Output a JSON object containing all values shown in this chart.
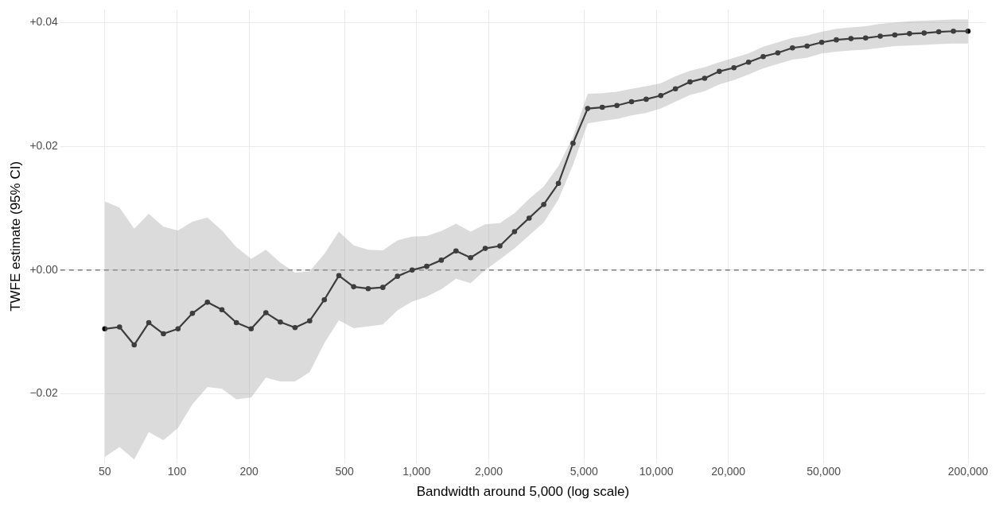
{
  "chart_data": {
    "type": "line",
    "xlabel": "Bandwidth around 5,000 (log scale)",
    "ylabel": "TWFE estimate (95% CI)",
    "log": "x",
    "grid": true,
    "marker": "circle",
    "line_style": "solid",
    "x": [
      50,
      57.6,
      66.3,
      76.3,
      87.8,
      101,
      116,
      134,
      154,
      177,
      204,
      235,
      270,
      311,
      358,
      412,
      474,
      546,
      628,
      723,
      832,
      958,
      1102,
      1268,
      1460,
      1680,
      1934,
      2226,
      2562,
      2948,
      3393,
      3906,
      4495,
      5174,
      5954,
      6853,
      7887,
      9078,
      10445,
      12023,
      13836,
      15927,
      18330,
      21098,
      24281,
      27946,
      32162,
      37020,
      42604,
      49038,
      56435,
      64959,
      74757,
      86050,
      99010,
      114000,
      131200,
      151000,
      173800,
      200000
    ],
    "xlim": [
      32.6,
      236600
    ],
    "xticks": [
      50,
      100,
      200,
      500,
      {
        "value": 1000,
        "label": "1,000"
      },
      {
        "value": 2000,
        "label": "2,000"
      },
      {
        "value": 5000,
        "label": "5,000"
      },
      {
        "value": 10000,
        "label": "10,000"
      },
      {
        "value": 20000,
        "label": "20,000"
      },
      {
        "value": 50000,
        "label": "50,000"
      },
      {
        "value": 200000,
        "label": "200,000"
      }
    ],
    "ylim": [
      -0.0312,
      0.0421
    ],
    "yticks": [
      {
        "value": -0.02,
        "label": "−0.02"
      },
      {
        "value": 0,
        "label": "+0.00"
      },
      {
        "value": 0.02,
        "label": "+0.02"
      },
      {
        "value": 0.04,
        "label": "+0.04"
      }
    ],
    "ref_lines": [
      {
        "axis": "y",
        "value": 0,
        "color": "#666666",
        "line_style": "dashed"
      }
    ],
    "series": [
      {
        "color": "#000000",
        "values": [
          -0.0095,
          -0.0092,
          -0.0121,
          -0.0085,
          -0.0103,
          -0.0095,
          -0.007,
          -0.0052,
          -0.0064,
          -0.0085,
          -0.0095,
          -0.0069,
          -0.0084,
          -0.0093,
          -0.0082,
          -0.0048,
          -0.0009,
          -0.0027,
          -0.003,
          -0.0028,
          -0.001,
          0.0,
          0.0006,
          0.0016,
          0.0031,
          0.002,
          0.0035,
          0.0039,
          0.0062,
          0.0084,
          0.0106,
          0.014,
          0.0205,
          0.0261,
          0.0263,
          0.0266,
          0.0272,
          0.0276,
          0.0282,
          0.0293,
          0.0304,
          0.031,
          0.0321,
          0.0327,
          0.0336,
          0.0345,
          0.0351,
          0.0359,
          0.0362,
          0.0368,
          0.0372,
          0.0374,
          0.0375,
          0.0378,
          0.038,
          0.0382,
          0.0383,
          0.0385,
          0.0386,
          0.0386
        ],
        "upper": [
          0.0111,
          0.0101,
          0.0067,
          0.0091,
          0.007,
          0.0064,
          0.0078,
          0.0085,
          0.0064,
          0.0037,
          0.0018,
          0.0033,
          0.0012,
          -0.0004,
          -0.0002,
          0.0026,
          0.0062,
          0.004,
          0.0033,
          0.0032,
          0.0048,
          0.0054,
          0.0055,
          0.0063,
          0.0075,
          0.0062,
          0.0074,
          0.0076,
          0.0092,
          0.0115,
          0.0135,
          0.0168,
          0.0216,
          0.0285,
          0.0286,
          0.0288,
          0.0293,
          0.0297,
          0.0302,
          0.0313,
          0.0322,
          0.0328,
          0.0336,
          0.0343,
          0.035,
          0.0361,
          0.0368,
          0.0375,
          0.0379,
          0.0385,
          0.039,
          0.0392,
          0.0394,
          0.0398,
          0.04,
          0.0402,
          0.0403,
          0.0404,
          0.0405,
          0.0405
        ],
        "lower": [
          -0.0302,
          -0.0286,
          -0.0306,
          -0.0262,
          -0.0275,
          -0.0255,
          -0.0217,
          -0.0189,
          -0.0192,
          -0.0209,
          -0.0206,
          -0.0174,
          -0.018,
          -0.018,
          -0.0165,
          -0.0118,
          -0.0081,
          -0.0094,
          -0.0091,
          -0.0088,
          -0.0065,
          -0.0051,
          -0.0043,
          -0.0031,
          -0.0014,
          -0.0021,
          0.0,
          0.0017,
          0.0035,
          0.0056,
          0.0077,
          0.0114,
          0.017,
          0.0237,
          0.0241,
          0.0244,
          0.025,
          0.0254,
          0.0261,
          0.0272,
          0.0283,
          0.0289,
          0.03,
          0.0307,
          0.0316,
          0.0326,
          0.0333,
          0.034,
          0.0343,
          0.035,
          0.0353,
          0.0355,
          0.0356,
          0.0359,
          0.0362,
          0.0363,
          0.0364,
          0.0365,
          0.0366,
          0.0366
        ]
      }
    ]
  }
}
